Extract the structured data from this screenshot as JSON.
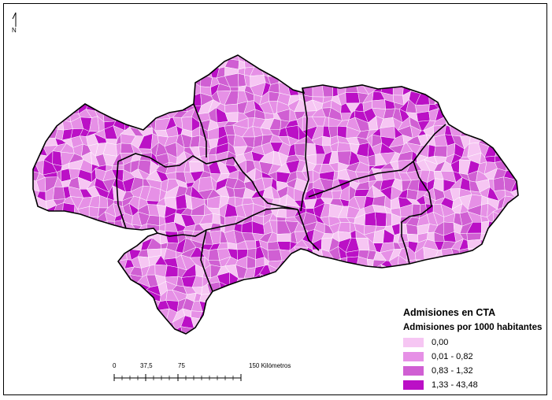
{
  "north_arrow": {
    "label": "N"
  },
  "legend": {
    "title": "Admisiones en CTA",
    "subtitle": "Admisiones por 1000 habitantes",
    "classes": [
      {
        "label": "0,00",
        "color": "#f6c6f3"
      },
      {
        "label": "0,01 - 0,82",
        "color": "#e690e6"
      },
      {
        "label": "0,83 - 1,32",
        "color": "#d05fd3"
      },
      {
        "label": "1,33 - 43,48",
        "color": "#bb10c6"
      }
    ]
  },
  "scale_bar": {
    "ticks": [
      "0",
      "37,5",
      "75",
      "150 Kilómetros"
    ]
  },
  "colors": {
    "boundary": "#000000",
    "municipality_lines": "#ffffff"
  }
}
